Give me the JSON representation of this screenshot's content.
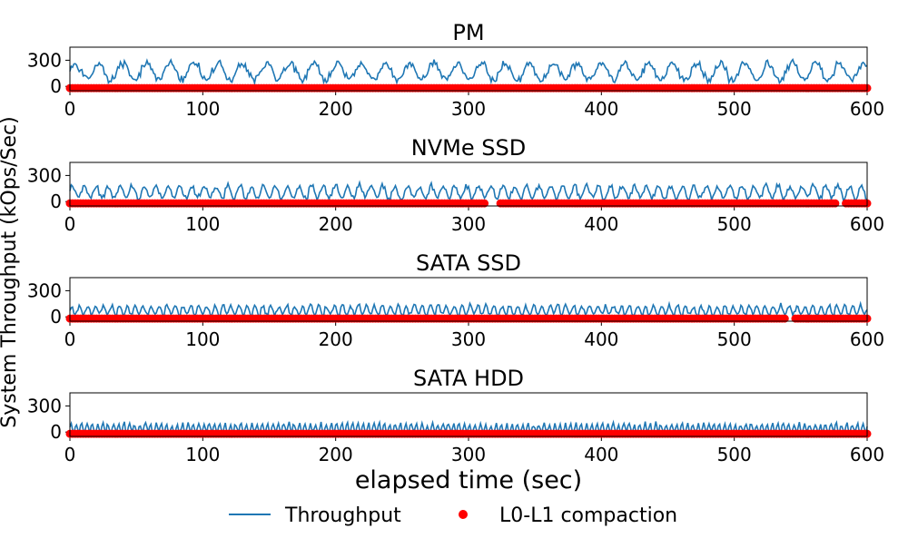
{
  "chart_data": {
    "type": "line",
    "ylabel": "System Throughput (kOps/Sec)",
    "xlabel": "elapsed time (sec)",
    "xlim": [
      0,
      600
    ],
    "ylim": [
      -50,
      450
    ],
    "xticks": [
      0,
      100,
      200,
      300,
      400,
      500,
      600
    ],
    "yticks": [
      0,
      300
    ],
    "grid": false,
    "legend_position": "bottom-center",
    "legend": {
      "throughput_label": "Throughput",
      "compaction_label": "L0-L1 compaction"
    },
    "colors": {
      "throughput": "#1f77b4",
      "compaction": "#ff0000"
    },
    "panels": [
      {
        "title": "PM",
        "throughput": {
          "base": 170,
          "amp": 120,
          "floor": 40,
          "ceil": 320,
          "period": 18,
          "seed": 11
        },
        "compaction": {
          "y": -20,
          "gaps": []
        }
      },
      {
        "title": "NVMe SSD",
        "throughput": {
          "base": 110,
          "amp": 90,
          "floor": 5,
          "ceil": 270,
          "period": 9,
          "seed": 23
        },
        "compaction": {
          "y": -20,
          "gaps": [
            [
              313,
              322
            ],
            [
              578,
              582
            ]
          ]
        }
      },
      {
        "title": "SATA SSD",
        "throughput": {
          "base": 75,
          "amp": 70,
          "floor": 0,
          "ceil": 220,
          "period": 6,
          "seed": 37
        },
        "compaction": {
          "y": -20,
          "gaps": [
            [
              540,
              545
            ]
          ]
        }
      },
      {
        "title": "SATA HDD",
        "throughput": {
          "base": 40,
          "amp": 70,
          "floor": -20,
          "ceil": 130,
          "period": 4,
          "seed": 51
        },
        "compaction": {
          "y": -20,
          "gaps": []
        }
      }
    ]
  }
}
